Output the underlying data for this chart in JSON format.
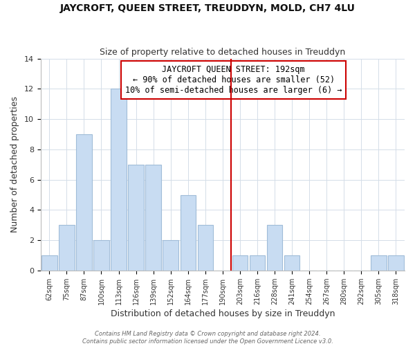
{
  "title": "JAYCROFT, QUEEN STREET, TREUDDYN, MOLD, CH7 4LU",
  "subtitle": "Size of property relative to detached houses in Treuddyn",
  "xlabel": "Distribution of detached houses by size in Treuddyn",
  "ylabel": "Number of detached properties",
  "footer1": "Contains HM Land Registry data © Crown copyright and database right 2024.",
  "footer2": "Contains public sector information licensed under the Open Government Licence v3.0.",
  "bar_labels": [
    "62sqm",
    "75sqm",
    "87sqm",
    "100sqm",
    "113sqm",
    "126sqm",
    "139sqm",
    "152sqm",
    "164sqm",
    "177sqm",
    "190sqm",
    "203sqm",
    "216sqm",
    "228sqm",
    "241sqm",
    "254sqm",
    "267sqm",
    "280sqm",
    "292sqm",
    "305sqm",
    "318sqm"
  ],
  "bar_values": [
    1,
    3,
    9,
    2,
    12,
    7,
    7,
    2,
    5,
    3,
    0,
    1,
    1,
    3,
    1,
    0,
    0,
    0,
    0,
    1,
    1
  ],
  "bar_color": "#c8dcf2",
  "bar_edge_color": "#a0bcd8",
  "highlight_color": "#cc0000",
  "annotation_title": "JAYCROFT QUEEN STREET: 192sqm",
  "annotation_line1": "← 90% of detached houses are smaller (52)",
  "annotation_line2": "10% of semi-detached houses are larger (6) →",
  "ylim": [
    0,
    14
  ],
  "yticks": [
    0,
    2,
    4,
    6,
    8,
    10,
    12,
    14
  ]
}
